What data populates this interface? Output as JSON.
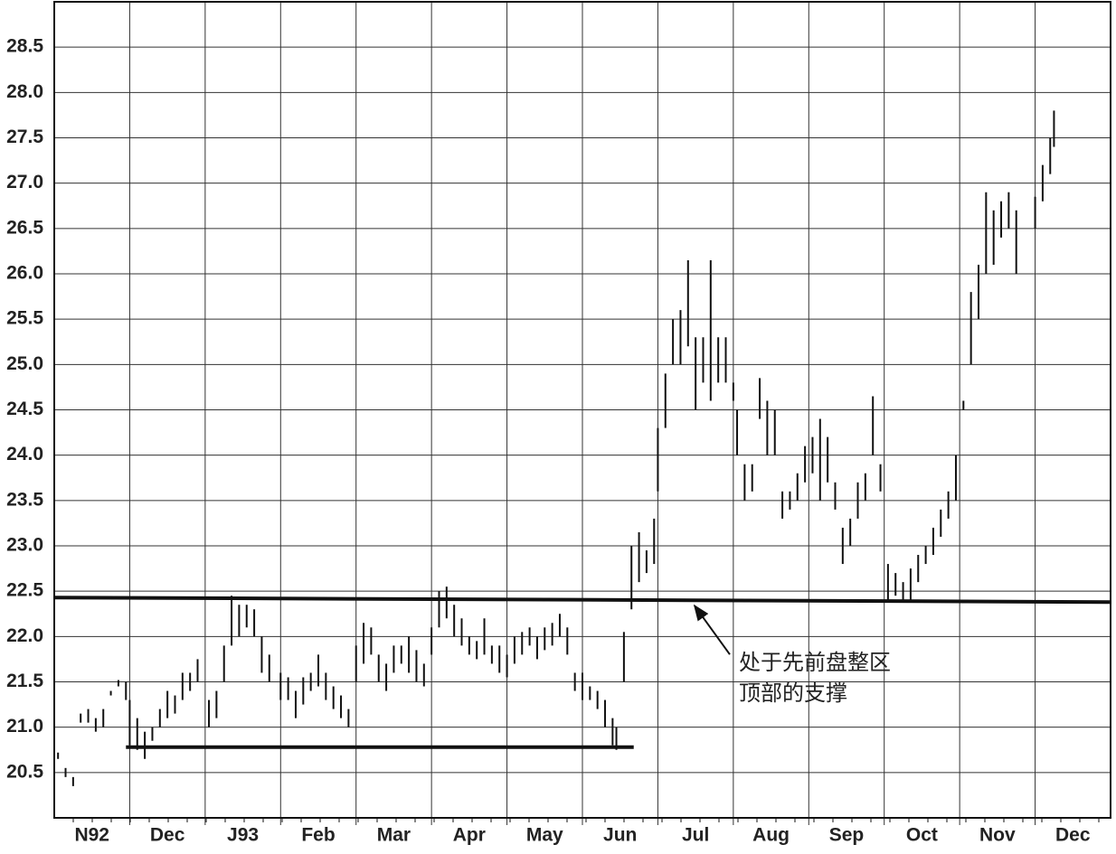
{
  "chart_data": {
    "type": "ohlc",
    "xlim": [
      0,
      14
    ],
    "ylim": [
      20,
      29
    ],
    "xticks": [
      {
        "value": 0.5,
        "label": "N92"
      },
      {
        "value": 1.5,
        "label": "Dec"
      },
      {
        "value": 2.5,
        "label": "J93"
      },
      {
        "value": 3.5,
        "label": "Feb"
      },
      {
        "value": 4.5,
        "label": "Mar"
      },
      {
        "value": 5.5,
        "label": "Apr"
      },
      {
        "value": 6.5,
        "label": "May"
      },
      {
        "value": 7.5,
        "label": "Jun"
      },
      {
        "value": 8.5,
        "label": "Jul"
      },
      {
        "value": 9.5,
        "label": "Aug"
      },
      {
        "value": 10.5,
        "label": "Sep"
      },
      {
        "value": 11.5,
        "label": "Oct"
      },
      {
        "value": 12.5,
        "label": "Nov"
      },
      {
        "value": 13.5,
        "label": "Dec"
      }
    ],
    "yticks": [
      20.5,
      {
        "value": 21,
        "label": "21.0"
      },
      21.5,
      {
        "value": 22,
        "label": "22.0"
      },
      22.5,
      {
        "value": 23,
        "label": "23.0"
      },
      23.5,
      {
        "value": 24,
        "label": "24.0"
      },
      24.5,
      {
        "value": 25,
        "label": "25.0"
      },
      25.5,
      {
        "value": 26,
        "label": "26.0"
      },
      26.5,
      {
        "value": 27,
        "label": "27.0"
      },
      27.5,
      {
        "value": 28,
        "label": "28.0"
      },
      28.5
    ],
    "grid": true,
    "color": "#111111",
    "bars": {
      "x": [
        0.05,
        0.15,
        0.25,
        0.35,
        0.45,
        0.55,
        0.65,
        0.75,
        0.85,
        0.95,
        1.0,
        1.1,
        1.2,
        1.3,
        1.4,
        1.5,
        1.6,
        1.7,
        1.8,
        1.9,
        2.05,
        2.15,
        2.25,
        2.35,
        2.45,
        2.55,
        2.65,
        2.75,
        2.85,
        3.0,
        3.1,
        3.2,
        3.3,
        3.4,
        3.5,
        3.6,
        3.7,
        3.8,
        3.9,
        4.0,
        4.1,
        4.2,
        4.3,
        4.4,
        4.5,
        4.6,
        4.7,
        4.8,
        4.9,
        5.0,
        5.1,
        5.2,
        5.3,
        5.4,
        5.5,
        5.6,
        5.7,
        5.8,
        5.9,
        6.0,
        6.1,
        6.2,
        6.3,
        6.4,
        6.5,
        6.6,
        6.7,
        6.8,
        6.9,
        7.0,
        7.1,
        7.2,
        7.3,
        7.4,
        7.45,
        7.55,
        7.65,
        7.75,
        7.85,
        7.95,
        8.0,
        8.1,
        8.2,
        8.3,
        8.4,
        8.5,
        8.6,
        8.7,
        8.8,
        8.9,
        9.0,
        9.05,
        9.15,
        9.25,
        9.35,
        9.45,
        9.55,
        9.65,
        9.75,
        9.85,
        9.95,
        10.05,
        10.15,
        10.25,
        10.35,
        10.45,
        10.55,
        10.65,
        10.75,
        10.85,
        10.95,
        11.05,
        11.15,
        11.25,
        11.35,
        11.45,
        11.55,
        11.65,
        11.75,
        11.85,
        11.95,
        12.05,
        12.15,
        12.25,
        12.35,
        12.45,
        12.55,
        12.65,
        12.75,
        13.0,
        13.1,
        13.2,
        13.25
      ],
      "high": [
        20.72,
        20.55,
        20.45,
        21.15,
        21.2,
        21.1,
        21.2,
        21.4,
        21.52,
        21.5,
        21.3,
        21.1,
        20.95,
        21.0,
        21.2,
        21.4,
        21.35,
        21.6,
        21.6,
        21.75,
        21.3,
        21.4,
        21.9,
        22.45,
        22.35,
        22.35,
        22.3,
        22.0,
        21.8,
        21.6,
        21.55,
        21.4,
        21.55,
        21.6,
        21.8,
        21.6,
        21.45,
        21.35,
        21.2,
        21.9,
        22.15,
        22.1,
        21.8,
        21.7,
        21.9,
        21.9,
        22.0,
        21.85,
        21.7,
        22.1,
        22.5,
        22.55,
        22.35,
        22.2,
        22.0,
        21.95,
        22.2,
        21.9,
        21.9,
        21.8,
        22.0,
        22.05,
        22.1,
        22.0,
        22.1,
        22.15,
        22.25,
        22.1,
        21.6,
        21.6,
        21.45,
        21.4,
        21.3,
        21.1,
        21.0,
        22.05,
        23.0,
        23.15,
        22.95,
        23.3,
        24.3,
        24.9,
        25.5,
        25.6,
        26.15,
        25.3,
        25.3,
        26.15,
        25.3,
        25.3,
        24.8,
        24.5,
        23.9,
        23.9,
        24.85,
        24.6,
        24.5,
        23.6,
        23.6,
        23.8,
        24.1,
        24.2,
        24.4,
        24.2,
        23.7,
        23.2,
        23.3,
        23.7,
        23.8,
        24.65,
        23.9,
        22.8,
        22.7,
        22.6,
        22.75,
        22.9,
        23.0,
        23.2,
        23.4,
        23.6,
        24.0,
        24.6,
        25.8,
        26.1,
        26.9,
        26.7,
        26.8,
        26.9,
        26.7,
        26.85,
        27.2,
        27.5,
        27.8
      ],
      "low": [
        20.65,
        20.45,
        20.35,
        21.05,
        21.05,
        20.95,
        21.0,
        21.35,
        21.45,
        21.3,
        20.8,
        20.75,
        20.65,
        20.85,
        21.0,
        21.1,
        21.15,
        21.3,
        21.4,
        21.5,
        21.0,
        21.1,
        21.5,
        21.9,
        22.0,
        22.1,
        22.0,
        21.6,
        21.5,
        21.3,
        21.3,
        21.1,
        21.25,
        21.4,
        21.45,
        21.3,
        21.2,
        21.1,
        21.0,
        21.5,
        21.7,
        21.8,
        21.5,
        21.4,
        21.6,
        21.7,
        21.6,
        21.5,
        21.45,
        21.8,
        22.1,
        22.2,
        22.0,
        21.9,
        21.8,
        21.75,
        21.8,
        21.7,
        21.6,
        21.55,
        21.7,
        21.8,
        21.9,
        21.75,
        21.85,
        21.9,
        22.0,
        21.8,
        21.4,
        21.3,
        21.3,
        21.2,
        21.0,
        20.8,
        20.75,
        21.5,
        22.3,
        22.6,
        22.7,
        22.8,
        23.6,
        24.3,
        25.0,
        25.0,
        25.2,
        24.5,
        24.8,
        24.6,
        24.8,
        24.8,
        24.6,
        24.0,
        23.5,
        23.6,
        24.4,
        24.0,
        24.0,
        23.3,
        23.4,
        23.5,
        23.7,
        23.8,
        23.5,
        23.7,
        23.4,
        22.8,
        23.0,
        23.3,
        23.5,
        24.0,
        23.6,
        22.4,
        22.45,
        22.4,
        22.4,
        22.6,
        22.8,
        22.9,
        23.1,
        23.3,
        23.5,
        24.5,
        25.0,
        25.5,
        26.0,
        26.1,
        26.4,
        26.5,
        26.0,
        26.5,
        26.8,
        27.1,
        27.4
      ]
    },
    "lines": [
      {
        "x": [
          0,
          14
        ],
        "y": [
          22.43,
          22.38
        ]
      },
      {
        "x": [
          0.95,
          7.68
        ],
        "y": [
          20.78,
          20.78
        ]
      }
    ],
    "annotation": {
      "lines": [
        "处于先前盘整区",
        "顶部的支撑"
      ],
      "xy": [
        8.45,
        22.4
      ]
    }
  }
}
